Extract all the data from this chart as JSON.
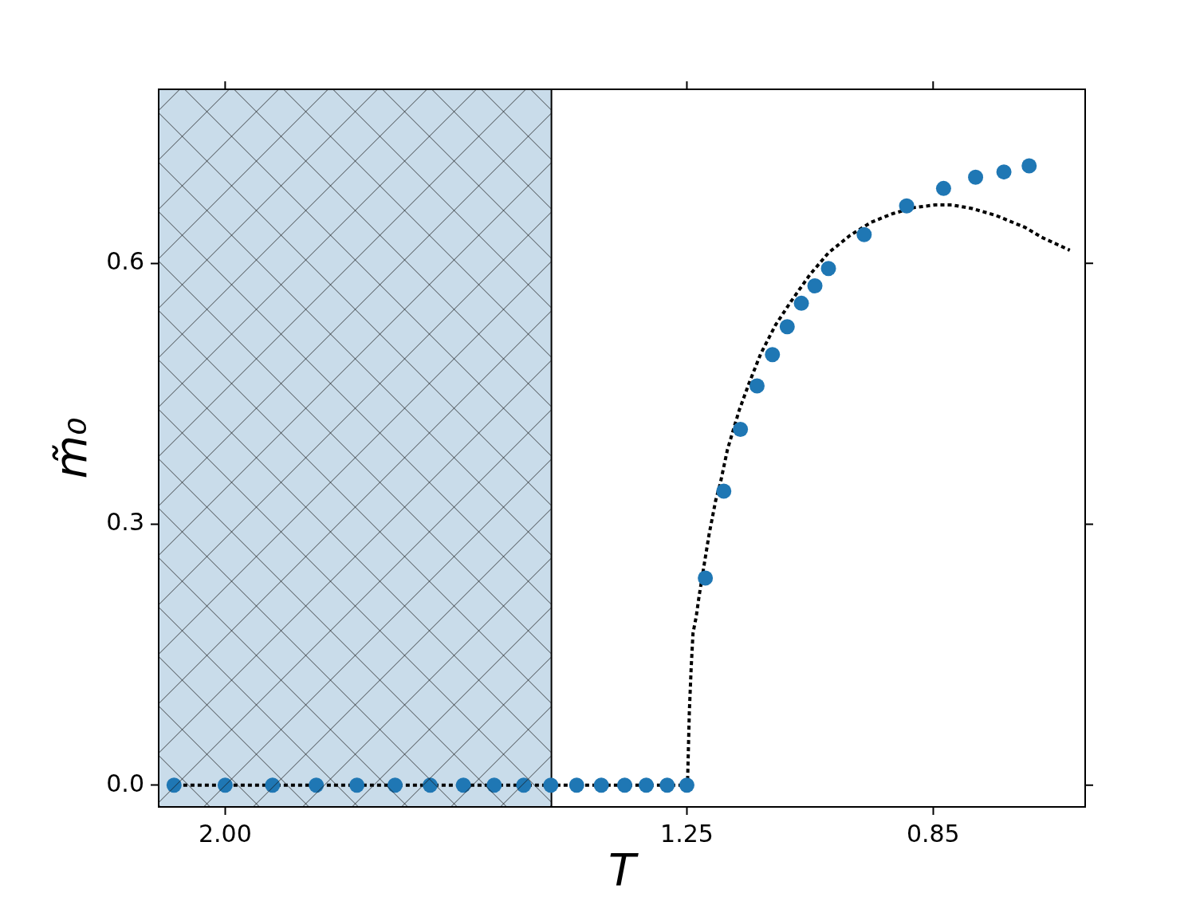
{
  "chart_data": {
    "type": "scatter",
    "xlabel": "T",
    "ylabel": "m̃₀",
    "xlim": [
      2.108,
      0.603
    ],
    "ylim": [
      -0.025,
      0.8
    ],
    "xticks": [
      {
        "value": 2,
        "label": "2.00"
      },
      1.25,
      0.85
    ],
    "yticks": [
      {
        "value": 0,
        "label": "0.0"
      },
      0.3,
      0.6
    ],
    "bands": [
      {
        "axis": "x",
        "from": 2.108,
        "to": 1.47,
        "color": "#c9dcea"
      }
    ],
    "series": [
      {
        "type": "scatter",
        "color": "#1f77b4",
        "marker": "circle",
        "x": [
          2.083,
          2.0,
          1.923,
          1.852,
          1.786,
          1.724,
          1.667,
          1.613,
          1.563,
          1.515,
          1.471,
          1.429,
          1.389,
          1.351,
          1.316,
          1.282,
          1.25,
          1.22,
          1.19,
          1.163,
          1.136,
          1.111,
          1.087,
          1.064,
          1.042,
          1.02,
          0.962,
          0.893,
          0.833,
          0.781,
          0.735,
          0.694
        ],
        "values": [
          0,
          0,
          0,
          0,
          0,
          0,
          0,
          0,
          0,
          0,
          0,
          0,
          0,
          0,
          0,
          0,
          0,
          0.238,
          0.338,
          0.409,
          0.459,
          0.495,
          0.527,
          0.554,
          0.574,
          0.594,
          0.633,
          0.666,
          0.686,
          0.699,
          0.705,
          0.712
        ]
      },
      {
        "type": "line",
        "color": "#000000",
        "marker": "none",
        "line_style": "dotted",
        "x": [
          2.068,
          1.249,
          1.246,
          1.243,
          1.24,
          1.235,
          1.23,
          1.214,
          1.203,
          1.196,
          1.184,
          1.165,
          1.149,
          1.13,
          1.106,
          1.08,
          1.05,
          1.02,
          0.985,
          0.951,
          0.916,
          0.881,
          0.847,
          0.819,
          0.787,
          0.748,
          0.7,
          0.674,
          0.628
        ],
        "values": [
          0,
          0,
          0.084,
          0.135,
          0.175,
          0.193,
          0.218,
          0.288,
          0.328,
          0.346,
          0.386,
          0.431,
          0.462,
          0.496,
          0.529,
          0.557,
          0.587,
          0.612,
          0.632,
          0.647,
          0.657,
          0.664,
          0.667,
          0.667,
          0.663,
          0.655,
          0.641,
          0.63,
          0.615
        ]
      }
    ]
  }
}
